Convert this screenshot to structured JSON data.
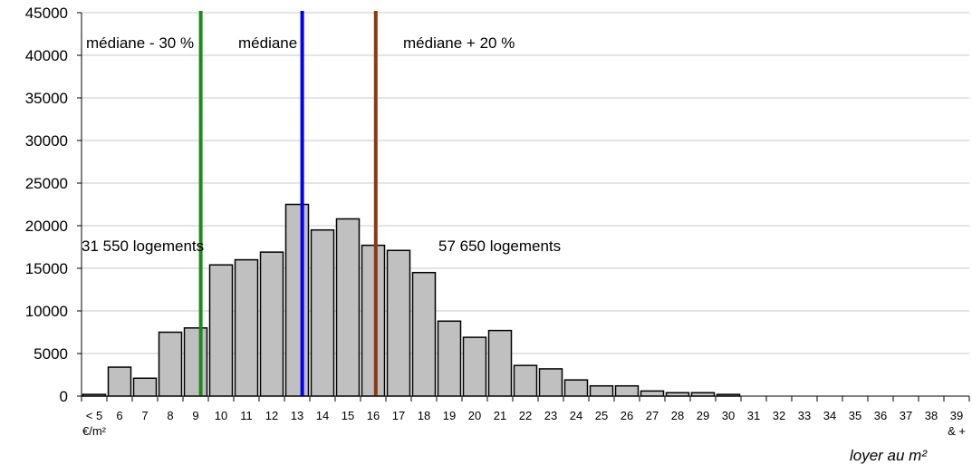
{
  "chart_data": {
    "type": "bar",
    "categories": [
      "< 5",
      "6",
      "7",
      "8",
      "9",
      "10",
      "11",
      "12",
      "13",
      "14",
      "15",
      "16",
      "17",
      "18",
      "19",
      "20",
      "21",
      "22",
      "23",
      "24",
      "25",
      "26",
      "27",
      "28",
      "29",
      "30",
      "31",
      "32",
      "33",
      "34",
      "35",
      "36",
      "37",
      "38",
      "39"
    ],
    "category_sublabels": {
      "first": "€/m²",
      "last": "& +"
    },
    "values": [
      200,
      3400,
      2100,
      7500,
      8000,
      15400,
      16000,
      16900,
      22500,
      19500,
      20800,
      17700,
      17100,
      14500,
      8800,
      6900,
      7700,
      3600,
      3200,
      1900,
      1200,
      1200,
      600,
      400,
      400,
      200,
      0,
      0,
      0,
      0,
      0,
      0,
      0,
      0,
      0
    ],
    "xlabel": "loyer au m²",
    "ylabel": "",
    "ylim": [
      0,
      45000
    ],
    "yticks": [
      0,
      5000,
      10000,
      15000,
      20000,
      25000,
      30000,
      35000,
      40000,
      45000
    ],
    "grid": true,
    "bar_color": "#c0c0c0",
    "vertical_lines": [
      {
        "label": "médiane - 30 %",
        "x": 9.2,
        "color": "#1e8a1e"
      },
      {
        "label": "médiane",
        "x": 13.2,
        "color": "#0000ee"
      },
      {
        "label": "médiane + 20 %",
        "x": 16.1,
        "color": "#8b3a0e"
      }
    ],
    "annotations": [
      {
        "text": "31 550 logements"
      },
      {
        "text": "57 650 logements"
      }
    ]
  }
}
